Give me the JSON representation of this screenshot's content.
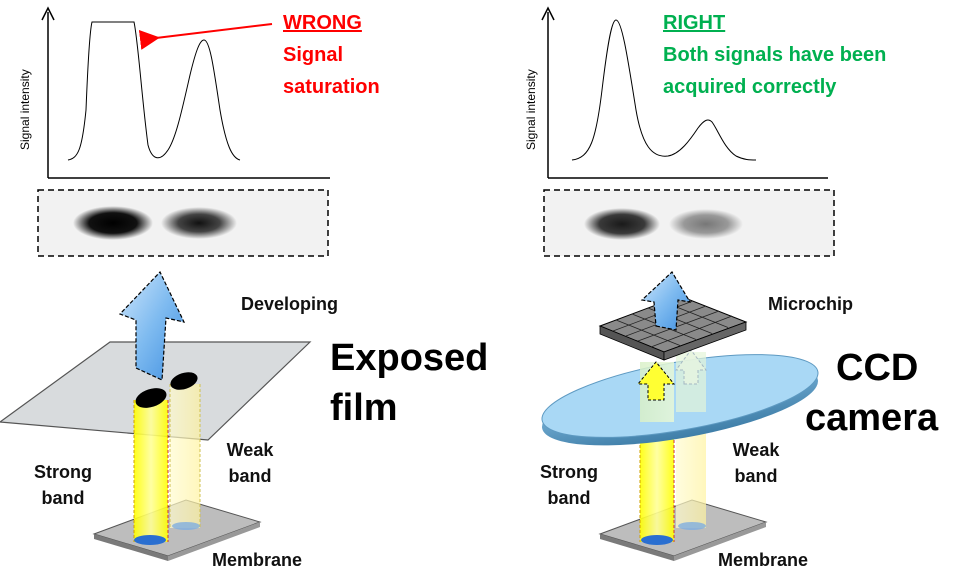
{
  "colors": {
    "wrong": "#ff0000",
    "right": "#00b050",
    "arrow": "#9ccbf2",
    "film": "#cfd3d6",
    "lens": "#a9d8f5",
    "beam": "#ffff66"
  },
  "left_panel": {
    "y_axis_label": "Signal intensity",
    "verdict_title": "WRONG",
    "verdict_lines": [
      "Signal",
      "saturation"
    ],
    "process_label": "Developing",
    "device_lines": [
      "Exposed",
      "film"
    ],
    "strong_band_lines": [
      "Strong",
      "band"
    ],
    "weak_band_lines": [
      "Weak",
      "band"
    ],
    "membrane_label": "Membrane"
  },
  "right_panel": {
    "y_axis_label": "Signal intensity",
    "verdict_title": "RIGHT",
    "verdict_lines": [
      "Both signals have been",
      "acquired correctly"
    ],
    "process_label": "Microchip",
    "device_lines": [
      "CCD",
      "camera"
    ],
    "strong_band_lines": [
      "Strong",
      "band"
    ],
    "weak_band_lines": [
      "Weak",
      "band"
    ],
    "membrane_label": "Membrane"
  }
}
